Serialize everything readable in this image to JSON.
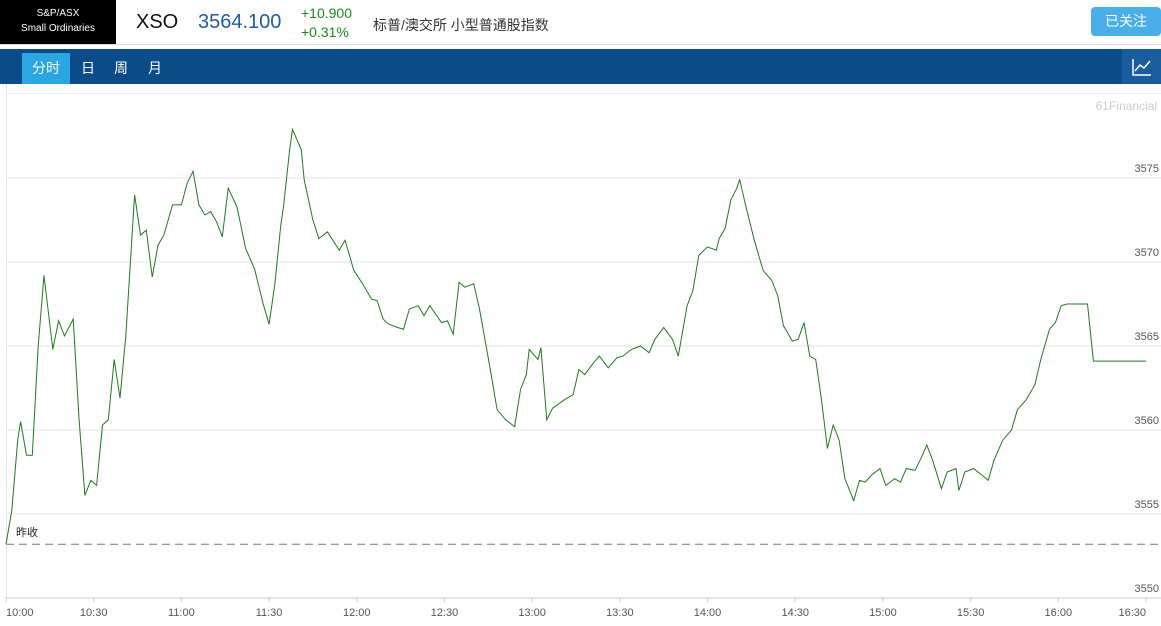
{
  "header": {
    "badge": [
      "S&P/ASX",
      "Small Ordinaries"
    ],
    "symbol": "XSO",
    "price": "3564.100",
    "change": "+10.900",
    "change_pct": "+0.31%",
    "name": "标普/澳交所 小型普通股指数",
    "follow_button": "已关注"
  },
  "tabs": [
    "分时",
    "日",
    "周",
    "月"
  ],
  "chart_data": {
    "type": "line",
    "watermark": "61Financial",
    "x": [
      "10:00",
      "10:02",
      "10:04",
      "10:05",
      "10:07",
      "10:09",
      "10:11",
      "10:13",
      "10:16",
      "10:18",
      "10:20",
      "10:23",
      "10:25",
      "10:27",
      "10:29",
      "10:31",
      "10:33",
      "10:35",
      "10:37",
      "10:39",
      "10:41",
      "10:44",
      "10:46",
      "10:48",
      "10:50",
      "10:52",
      "10:54",
      "10:57",
      "11:00",
      "11:02",
      "11:04",
      "11:06",
      "11:08",
      "11:10",
      "11:12",
      "11:14",
      "11:16",
      "11:19",
      "11:22",
      "11:25",
      "11:28",
      "11:30",
      "11:32",
      "11:34",
      "11:35",
      "11:37",
      "11:38",
      "11:41",
      "11:42",
      "11:45",
      "11:47",
      "11:50",
      "11:54",
      "11:56",
      "11:59",
      "12:02",
      "12:05",
      "12:07",
      "12:09",
      "12:11",
      "12:14",
      "12:16",
      "12:18",
      "12:21",
      "12:23",
      "12:25",
      "12:29",
      "12:31",
      "12:33",
      "12:35",
      "12:37",
      "12:40",
      "12:42",
      "12:46",
      "12:48",
      "12:51",
      "12:54",
      "12:56",
      "12:58",
      "12:59",
      "13:02",
      "13:03",
      "13:05",
      "13:07",
      "13:11",
      "13:14",
      "13:16",
      "13:18",
      "13:21",
      "13:23",
      "13:26",
      "13:29",
      "13:31",
      "13:34",
      "13:37",
      "13:40",
      "13:42",
      "13:45",
      "13:48",
      "13:50",
      "13:53",
      "13:55",
      "13:57",
      "14:00",
      "14:03",
      "14:04",
      "14:06",
      "14:08",
      "14:10",
      "14:11",
      "14:13",
      "14:16",
      "14:19",
      "14:22",
      "14:24",
      "14:26",
      "14:29",
      "14:31",
      "14:33",
      "14:35",
      "14:37",
      "14:39",
      "14:41",
      "14:43",
      "14:45",
      "14:47",
      "14:50",
      "14:52",
      "14:54",
      "14:56",
      "14:59",
      "15:01",
      "15:04",
      "15:06",
      "15:08",
      "15:11",
      "15:13",
      "15:15",
      "15:17",
      "15:20",
      "15:22",
      "15:25",
      "15:26",
      "15:28",
      "15:31",
      "15:34",
      "15:36",
      "15:38",
      "15:41",
      "15:44",
      "15:46",
      "15:49",
      "15:52",
      "15:54",
      "15:57",
      "15:59",
      "16:01",
      "16:03",
      "16:10",
      "16:12",
      "16:30"
    ],
    "series": [
      {
        "color": "#1f7a1f",
        "values": [
          3553.2,
          3555.2,
          3559.4,
          3560.5,
          3558.5,
          3558.5,
          3565.0,
          3569.2,
          3564.8,
          3566.5,
          3565.6,
          3566.6,
          3560.6,
          3556.1,
          3557.0,
          3556.7,
          3560.3,
          3560.6,
          3564.2,
          3561.9,
          3565.6,
          3574.0,
          3571.6,
          3571.9,
          3569.1,
          3571.0,
          3571.6,
          3573.4,
          3573.4,
          3574.7,
          3575.4,
          3573.4,
          3572.8,
          3573.0,
          3572.4,
          3571.5,
          3574.4,
          3573.3,
          3570.8,
          3569.6,
          3567.5,
          3566.3,
          3568.7,
          3572.2,
          3573.4,
          3576.6,
          3577.9,
          3576.7,
          3574.9,
          3572.5,
          3571.4,
          3571.8,
          3570.7,
          3571.3,
          3569.5,
          3568.7,
          3567.8,
          3567.7,
          3566.6,
          3566.3,
          3566.1,
          3566.0,
          3567.2,
          3567.4,
          3566.8,
          3567.4,
          3566.4,
          3566.5,
          3565.7,
          3568.8,
          3568.5,
          3568.7,
          3567.2,
          3563.3,
          3561.2,
          3560.6,
          3560.2,
          3562.4,
          3563.3,
          3564.8,
          3564.2,
          3564.9,
          3560.6,
          3561.3,
          3561.8,
          3562.1,
          3563.6,
          3563.3,
          3564.0,
          3564.4,
          3563.7,
          3564.3,
          3564.4,
          3564.8,
          3565.0,
          3564.6,
          3565.4,
          3566.1,
          3565.4,
          3564.4,
          3567.4,
          3568.3,
          3570.4,
          3570.9,
          3570.7,
          3571.4,
          3572.0,
          3573.7,
          3574.4,
          3574.9,
          3573.4,
          3571.3,
          3569.5,
          3568.9,
          3568.0,
          3566.2,
          3565.3,
          3565.4,
          3566.4,
          3564.4,
          3564.2,
          3561.8,
          3558.9,
          3560.3,
          3559.4,
          3557.1,
          3555.8,
          3557.0,
          3556.9,
          3557.3,
          3557.7,
          3556.7,
          3557.1,
          3556.9,
          3557.7,
          3557.6,
          3558.3,
          3559.1,
          3558.2,
          3556.5,
          3557.5,
          3557.7,
          3556.4,
          3557.5,
          3557.7,
          3557.3,
          3557.0,
          3558.2,
          3559.4,
          3560.0,
          3561.2,
          3561.8,
          3562.7,
          3564.2,
          3566.0,
          3566.4,
          3567.4,
          3567.5,
          3567.5,
          3564.1,
          3564.1
        ]
      }
    ],
    "prev_close": {
      "label": "昨收",
      "value": 3553.2
    },
    "xlim": [
      "10:00",
      "16:30"
    ],
    "xticks": [
      "10:00",
      "10:30",
      "11:00",
      "11:30",
      "12:00",
      "12:30",
      "13:00",
      "13:30",
      "14:00",
      "14:30",
      "15:00",
      "15:30",
      "16:00",
      "16:30"
    ],
    "ylim": [
      3550,
      3580
    ],
    "yticks": [
      3550,
      3555,
      3560,
      3565,
      3570,
      3575
    ],
    "grid": true
  }
}
